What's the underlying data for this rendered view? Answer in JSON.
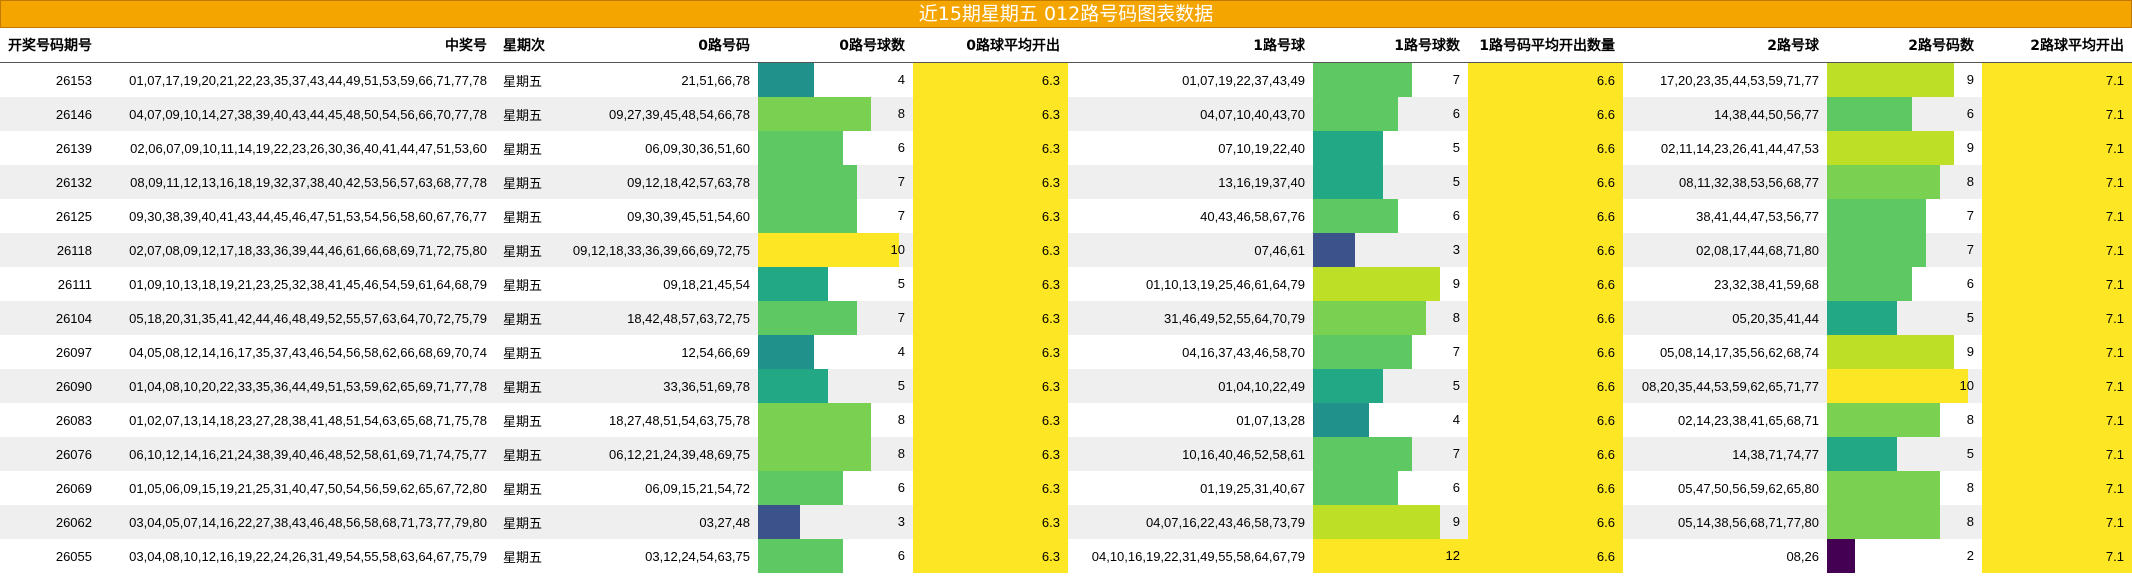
{
  "title": "近15期星期五 012路号码图表数据",
  "colors": {
    "header_bg": "#f5a500",
    "avg_bg": "#fde725",
    "row_alt": "#efefef",
    "palette": [
      "#440154",
      "#3b528b",
      "#21918c",
      "#22a884",
      "#5ec962",
      "#7ad151",
      "#bddf26",
      "#fde725"
    ]
  },
  "columns": [
    "开奖号码期号",
    "中奖号",
    "星期次",
    "0路号码",
    "0路号球数",
    "0路球平均开出",
    "1路号球",
    "1路号球数",
    "1路号码平均开出数量",
    "2路号球",
    "2路号码数",
    "2路球平均开出"
  ],
  "chart_data": {
    "type": "table",
    "title": "近15期星期五 012路号码图表数据",
    "averages": {
      "r0": "6.3",
      "r1": "6.6",
      "r2": "7.1"
    },
    "count_range": [
      0,
      12
    ],
    "rows": [
      {
        "issue": "26153",
        "numbers": "01,07,17,19,20,21,22,23,35,37,43,44,49,51,53,59,66,71,77,78",
        "weekday": "星期五",
        "r0_nums": "21,51,66,78",
        "r0_count": 4,
        "r0_avg": "6.3",
        "r1_nums": "01,07,19,22,37,43,49",
        "r1_count": 7,
        "r1_avg": "6.6",
        "r2_nums": "17,20,23,35,44,53,59,71,77",
        "r2_count": 9,
        "r2_avg": "7.1"
      },
      {
        "issue": "26146",
        "numbers": "04,07,09,10,14,27,38,39,40,43,44,45,48,50,54,56,66,70,77,78",
        "weekday": "星期五",
        "r0_nums": "09,27,39,45,48,54,66,78",
        "r0_count": 8,
        "r0_avg": "6.3",
        "r1_nums": "04,07,10,40,43,70",
        "r1_count": 6,
        "r1_avg": "6.6",
        "r2_nums": "14,38,44,50,56,77",
        "r2_count": 6,
        "r2_avg": "7.1"
      },
      {
        "issue": "26139",
        "numbers": "02,06,07,09,10,11,14,19,22,23,26,30,36,40,41,44,47,51,53,60",
        "weekday": "星期五",
        "r0_nums": "06,09,30,36,51,60",
        "r0_count": 6,
        "r0_avg": "6.3",
        "r1_nums": "07,10,19,22,40",
        "r1_count": 5,
        "r1_avg": "6.6",
        "r2_nums": "02,11,14,23,26,41,44,47,53",
        "r2_count": 9,
        "r2_avg": "7.1"
      },
      {
        "issue": "26132",
        "numbers": "08,09,11,12,13,16,18,19,32,37,38,40,42,53,56,57,63,68,77,78",
        "weekday": "星期五",
        "r0_nums": "09,12,18,42,57,63,78",
        "r0_count": 7,
        "r0_avg": "6.3",
        "r1_nums": "13,16,19,37,40",
        "r1_count": 5,
        "r1_avg": "6.6",
        "r2_nums": "08,11,32,38,53,56,68,77",
        "r2_count": 8,
        "r2_avg": "7.1"
      },
      {
        "issue": "26125",
        "numbers": "09,30,38,39,40,41,43,44,45,46,47,51,53,54,56,58,60,67,76,77",
        "weekday": "星期五",
        "r0_nums": "09,30,39,45,51,54,60",
        "r0_count": 7,
        "r0_avg": "6.3",
        "r1_nums": "40,43,46,58,67,76",
        "r1_count": 6,
        "r1_avg": "6.6",
        "r2_nums": "38,41,44,47,53,56,77",
        "r2_count": 7,
        "r2_avg": "7.1"
      },
      {
        "issue": "26118",
        "numbers": "02,07,08,09,12,17,18,33,36,39,44,46,61,66,68,69,71,72,75,80",
        "weekday": "星期五",
        "r0_nums": "09,12,18,33,36,39,66,69,72,75",
        "r0_count": 10,
        "r0_avg": "6.3",
        "r1_nums": "07,46,61",
        "r1_count": 3,
        "r1_avg": "6.6",
        "r2_nums": "02,08,17,44,68,71,80",
        "r2_count": 7,
        "r2_avg": "7.1"
      },
      {
        "issue": "26111",
        "numbers": "01,09,10,13,18,19,21,23,25,32,38,41,45,46,54,59,61,64,68,79",
        "weekday": "星期五",
        "r0_nums": "09,18,21,45,54",
        "r0_count": 5,
        "r0_avg": "6.3",
        "r1_nums": "01,10,13,19,25,46,61,64,79",
        "r1_count": 9,
        "r1_avg": "6.6",
        "r2_nums": "23,32,38,41,59,68",
        "r2_count": 6,
        "r2_avg": "7.1"
      },
      {
        "issue": "26104",
        "numbers": "05,18,20,31,35,41,42,44,46,48,49,52,55,57,63,64,70,72,75,79",
        "weekday": "星期五",
        "r0_nums": "18,42,48,57,63,72,75",
        "r0_count": 7,
        "r0_avg": "6.3",
        "r1_nums": "31,46,49,52,55,64,70,79",
        "r1_count": 8,
        "r1_avg": "6.6",
        "r2_nums": "05,20,35,41,44",
        "r2_count": 5,
        "r2_avg": "7.1"
      },
      {
        "issue": "26097",
        "numbers": "04,05,08,12,14,16,17,35,37,43,46,54,56,58,62,66,68,69,70,74",
        "weekday": "星期五",
        "r0_nums": "12,54,66,69",
        "r0_count": 4,
        "r0_avg": "6.3",
        "r1_nums": "04,16,37,43,46,58,70",
        "r1_count": 7,
        "r1_avg": "6.6",
        "r2_nums": "05,08,14,17,35,56,62,68,74",
        "r2_count": 9,
        "r2_avg": "7.1"
      },
      {
        "issue": "26090",
        "numbers": "01,04,08,10,20,22,33,35,36,44,49,51,53,59,62,65,69,71,77,78",
        "weekday": "星期五",
        "r0_nums": "33,36,51,69,78",
        "r0_count": 5,
        "r0_avg": "6.3",
        "r1_nums": "01,04,10,22,49",
        "r1_count": 5,
        "r1_avg": "6.6",
        "r2_nums": "08,20,35,44,53,59,62,65,71,77",
        "r2_count": 10,
        "r2_avg": "7.1"
      },
      {
        "issue": "26083",
        "numbers": "01,02,07,13,14,18,23,27,28,38,41,48,51,54,63,65,68,71,75,78",
        "weekday": "星期五",
        "r0_nums": "18,27,48,51,54,63,75,78",
        "r0_count": 8,
        "r0_avg": "6.3",
        "r1_nums": "01,07,13,28",
        "r1_count": 4,
        "r1_avg": "6.6",
        "r2_nums": "02,14,23,38,41,65,68,71",
        "r2_count": 8,
        "r2_avg": "7.1"
      },
      {
        "issue": "26076",
        "numbers": "06,10,12,14,16,21,24,38,39,40,46,48,52,58,61,69,71,74,75,77",
        "weekday": "星期五",
        "r0_nums": "06,12,21,24,39,48,69,75",
        "r0_count": 8,
        "r0_avg": "6.3",
        "r1_nums": "10,16,40,46,52,58,61",
        "r1_count": 7,
        "r1_avg": "6.6",
        "r2_nums": "14,38,71,74,77",
        "r2_count": 5,
        "r2_avg": "7.1"
      },
      {
        "issue": "26069",
        "numbers": "01,05,06,09,15,19,21,25,31,40,47,50,54,56,59,62,65,67,72,80",
        "weekday": "星期五",
        "r0_nums": "06,09,15,21,54,72",
        "r0_count": 6,
        "r0_avg": "6.3",
        "r1_nums": "01,19,25,31,40,67",
        "r1_count": 6,
        "r1_avg": "6.6",
        "r2_nums": "05,47,50,56,59,62,65,80",
        "r2_count": 8,
        "r2_avg": "7.1"
      },
      {
        "issue": "26062",
        "numbers": "03,04,05,07,14,16,22,27,38,43,46,48,56,58,68,71,73,77,79,80",
        "weekday": "星期五",
        "r0_nums": "03,27,48",
        "r0_count": 3,
        "r0_avg": "6.3",
        "r1_nums": "04,07,16,22,43,46,58,73,79",
        "r1_count": 9,
        "r1_avg": "6.6",
        "r2_nums": "05,14,38,56,68,71,77,80",
        "r2_count": 8,
        "r2_avg": "7.1"
      },
      {
        "issue": "26055",
        "numbers": "03,04,08,10,12,16,19,22,24,26,31,49,54,55,58,63,64,67,75,79",
        "weekday": "星期五",
        "r0_nums": "03,12,24,54,63,75",
        "r0_count": 6,
        "r0_avg": "6.3",
        "r1_nums": "04,10,16,19,22,31,49,55,58,64,67,79",
        "r1_count": 12,
        "r1_avg": "6.6",
        "r2_nums": "08,26",
        "r2_count": 2,
        "r2_avg": "7.1"
      }
    ]
  }
}
